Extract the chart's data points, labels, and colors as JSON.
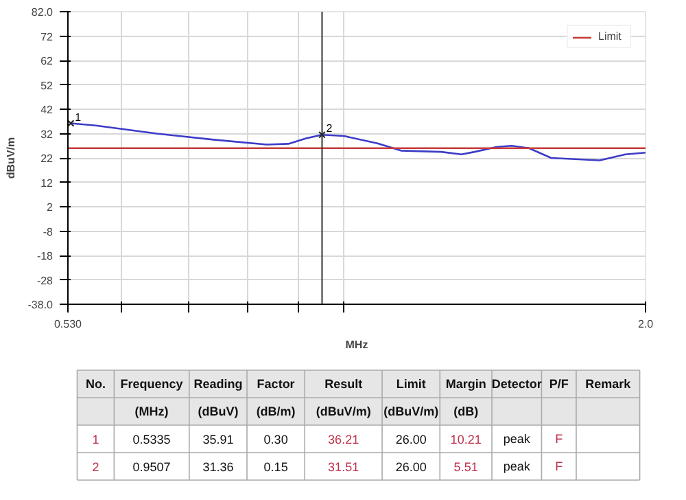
{
  "chart_data": [
    {
      "type": "line",
      "ylabel": "dBuV/m",
      "xlabel": "MHz",
      "log": "x",
      "grid": true,
      "legend": "top right",
      "xlim": [
        0.53,
        2.0
      ],
      "xticks": [
        {
          "value": 0.53,
          "label": "0.530"
        },
        {
          "value": 0.6,
          "label": null
        },
        {
          "value": 0.7,
          "label": null
        },
        {
          "value": 0.8,
          "label": null
        },
        {
          "value": 0.9,
          "label": null
        },
        {
          "value": 1.0,
          "label": null
        },
        {
          "value": 2.0,
          "label": "2.0"
        }
      ],
      "ylim": [
        -38,
        82
      ],
      "yticks": [
        {
          "value": -38,
          "label": "-38.0"
        },
        -28,
        -18,
        -8,
        2,
        12,
        22,
        32,
        42,
        52,
        62,
        72,
        {
          "value": 82,
          "label": "82.0"
        }
      ],
      "series": [
        {
          "color": "#3c3cc8",
          "x": [
            0.5335,
            0.565,
            0.65,
            0.741,
            0.837,
            0.88,
            0.916,
            0.9507,
            1.0,
            1.08,
            1.14,
            1.25,
            1.31,
            1.35,
            1.42,
            1.47,
            1.53,
            1.61,
            1.8,
            1.91,
            2.0
          ],
          "values": [
            36.21,
            35.3,
            32,
            29.5,
            27.5,
            27.8,
            30,
            31.51,
            31,
            28,
            25,
            24.5,
            23.5,
            24.5,
            26.5,
            27,
            26,
            22,
            21,
            23.5,
            24.2
          ]
        },
        {
          "name": "Limit",
          "color": "#c83c3c",
          "x": [
            0.53,
            2.0
          ],
          "values": [
            26,
            26
          ]
        }
      ],
      "ref_lines": [
        {
          "axis": "x",
          "value": 0.9507,
          "label": null,
          "color": "#333333"
        }
      ],
      "annotations": [
        {
          "text": "1",
          "x": 0.5335,
          "y": 36.21
        },
        {
          "text": "2",
          "x": 0.9507,
          "y": 31.51
        }
      ]
    },
    {
      "type": "other",
      "annotations": [
        "No.",
        "Frequency",
        "Reading",
        "Factor",
        "Result",
        "Limit",
        "Margin",
        "Detector",
        "P/F",
        "Remark",
        null,
        "(MHz)",
        "(dBuV)",
        "(dB/m)",
        "(dBuV/m)",
        "(dBuV/m)",
        "(dB)",
        null,
        null,
        null,
        "1",
        "0.5335",
        "35.91",
        "0.30",
        "36.21",
        "26.00",
        "10.21",
        "peak",
        "F",
        null,
        "2",
        "0.9507",
        "31.36",
        "0.15",
        "31.51",
        "26.00",
        "5.51",
        "peak",
        "F",
        null
      ]
    }
  ]
}
